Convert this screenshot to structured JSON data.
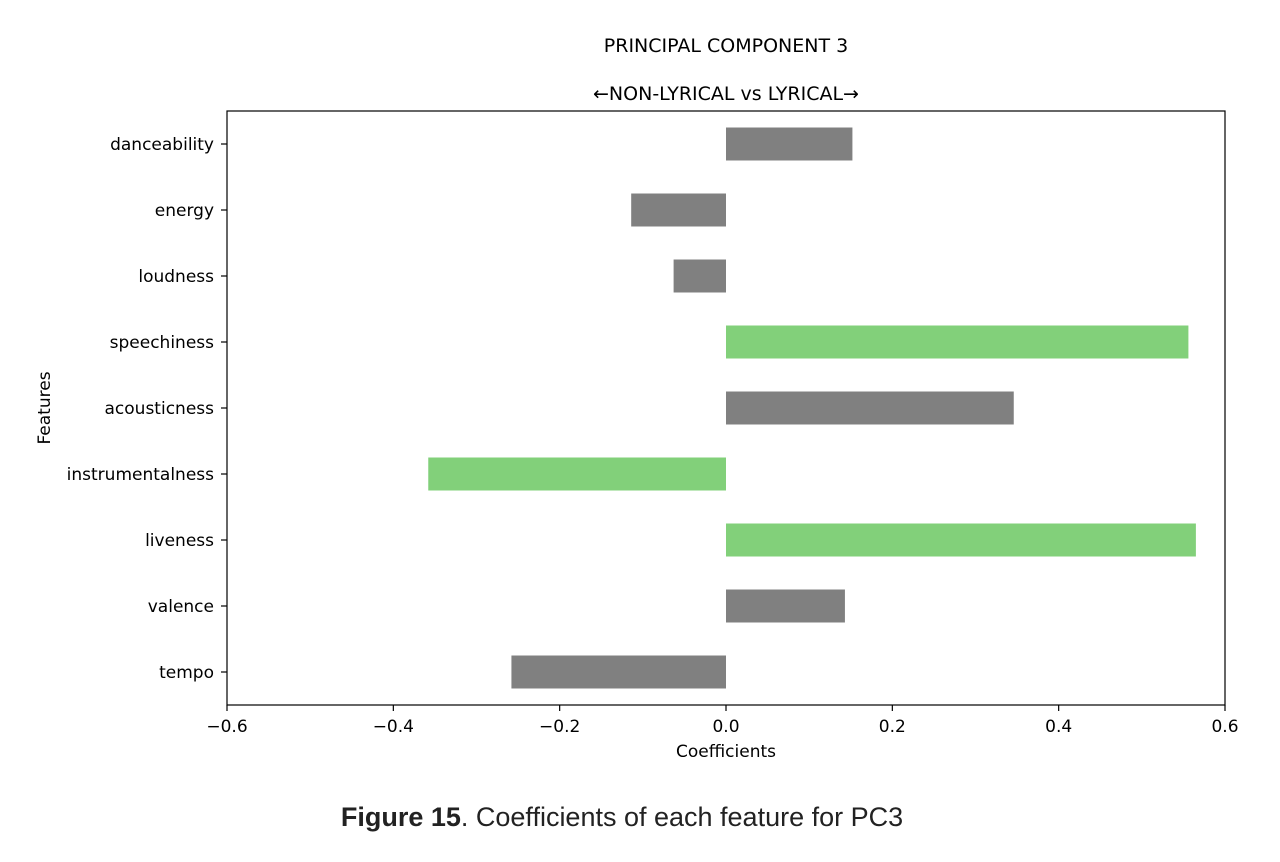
{
  "chart_data": {
    "type": "bar",
    "orientation": "horizontal",
    "title": "PRINCIPAL COMPONENT 3",
    "subtitle": "←NON-LYRICAL vs LYRICAL→",
    "xlabel": "Coefficients",
    "ylabel": "Features",
    "xlim": [
      -0.6,
      0.6
    ],
    "xticks": [
      -0.6,
      -0.4,
      -0.2,
      0.0,
      0.2,
      0.4,
      0.6
    ],
    "xtick_labels": [
      "−0.6",
      "−0.4",
      "−0.2",
      "0.0",
      "0.2",
      "0.4",
      "0.6"
    ],
    "categories": [
      "danceability",
      "energy",
      "loudness",
      "speechiness",
      "acousticness",
      "instrumentalness",
      "liveness",
      "valence",
      "tempo"
    ],
    "values": [
      0.152,
      -0.114,
      -0.063,
      0.556,
      0.346,
      -0.358,
      0.565,
      0.143,
      -0.258
    ],
    "highlighted": [
      false,
      false,
      false,
      true,
      false,
      true,
      true,
      false,
      false
    ],
    "colors": {
      "default": "#808080",
      "highlight": "#82d07a"
    },
    "grid": false
  },
  "caption": {
    "label": "Figure 15",
    "text": ". Coefficients of each feature for PC3"
  }
}
